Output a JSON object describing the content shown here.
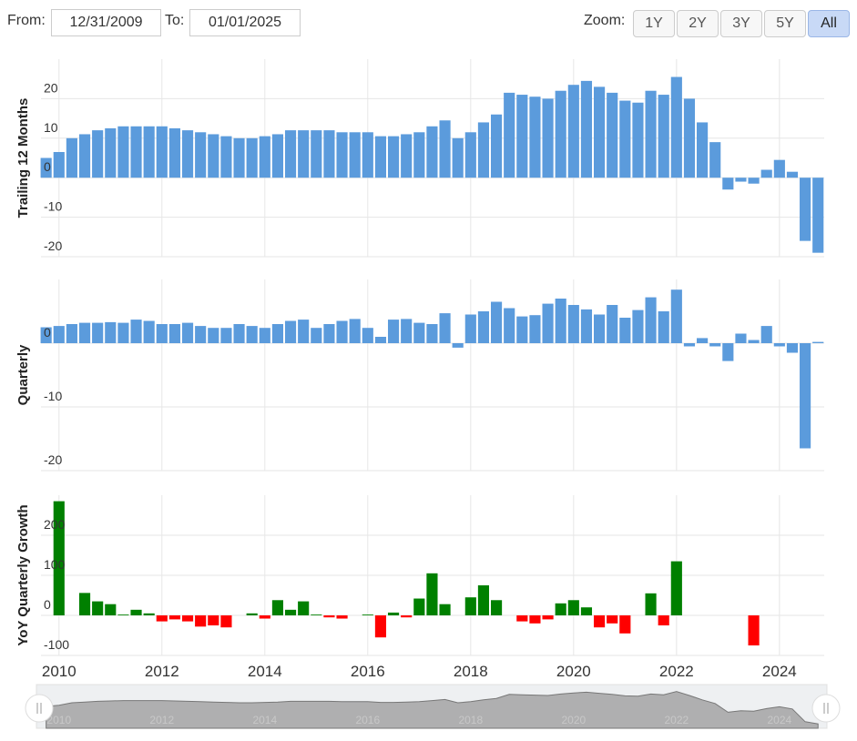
{
  "controls": {
    "from_label": "From:",
    "from_value": "12/31/2009",
    "to_label": "To:",
    "to_value": "01/01/2025",
    "zoom_label": "Zoom:",
    "zoom_buttons": [
      {
        "label": "1Y"
      },
      {
        "label": "2Y"
      },
      {
        "label": "3Y"
      },
      {
        "label": "5Y"
      },
      {
        "label": "All",
        "active": true
      }
    ]
  },
  "chart_data": [
    {
      "type": "bar",
      "ylabel": "Trailing 12 Months",
      "color": "#5b9bdc",
      "x": [
        2009.75,
        2010,
        2010.25,
        2010.5,
        2010.75,
        2011,
        2011.25,
        2011.5,
        2011.75,
        2012,
        2012.25,
        2012.5,
        2012.75,
        2013,
        2013.25,
        2013.5,
        2013.75,
        2014,
        2014.25,
        2014.5,
        2014.75,
        2015,
        2015.25,
        2015.5,
        2015.75,
        2016,
        2016.25,
        2016.5,
        2016.75,
        2017,
        2017.25,
        2017.5,
        2017.75,
        2018,
        2018.25,
        2018.5,
        2018.75,
        2019,
        2019.25,
        2019.5,
        2019.75,
        2020,
        2020.25,
        2020.5,
        2020.75,
        2021,
        2021.25,
        2021.5,
        2021.75,
        2022,
        2022.25,
        2022.5,
        2022.75,
        2023,
        2023.25,
        2023.5,
        2023.75,
        2024,
        2024.25,
        2024.5,
        2024.75
      ],
      "values": [
        5,
        6.5,
        10,
        11,
        12,
        12.5,
        13,
        13,
        13,
        13,
        12.5,
        12,
        11.5,
        11,
        10.5,
        10,
        10,
        10.5,
        11,
        12,
        12,
        12,
        12,
        11.5,
        11.5,
        11.5,
        10.5,
        10.5,
        11,
        11.5,
        13,
        14.5,
        10,
        11.5,
        14,
        16,
        21.5,
        21,
        20.5,
        20,
        22,
        23.5,
        24.5,
        23,
        21.5,
        19.5,
        19,
        22,
        21,
        25.5,
        20,
        14,
        9,
        -3,
        -1,
        -1.5,
        2,
        4.5,
        1.5,
        -16,
        -19
      ],
      "xlim": [
        2009.65,
        2024.87
      ],
      "xticks": [
        2010,
        2012,
        2014,
        2016,
        2018,
        2020,
        2022,
        2024
      ],
      "ylim": [
        -20,
        30
      ],
      "yticks": [
        -20,
        -10,
        0,
        10,
        20
      ],
      "grid": true
    },
    {
      "type": "bar",
      "ylabel": "Quarterly",
      "color": "#5b9bdc",
      "x": [
        2009.75,
        2010,
        2010.25,
        2010.5,
        2010.75,
        2011,
        2011.25,
        2011.5,
        2011.75,
        2012,
        2012.25,
        2012.5,
        2012.75,
        2013,
        2013.25,
        2013.5,
        2013.75,
        2014,
        2014.25,
        2014.5,
        2014.75,
        2015,
        2015.25,
        2015.5,
        2015.75,
        2016,
        2016.25,
        2016.5,
        2016.75,
        2017,
        2017.25,
        2017.5,
        2017.75,
        2018,
        2018.25,
        2018.5,
        2018.75,
        2019,
        2019.25,
        2019.5,
        2019.75,
        2020,
        2020.25,
        2020.5,
        2020.75,
        2021,
        2021.25,
        2021.5,
        2021.75,
        2022,
        2022.25,
        2022.5,
        2022.75,
        2023,
        2023.25,
        2023.5,
        2023.75,
        2024,
        2024.25,
        2024.5,
        2024.75
      ],
      "values": [
        2.5,
        2.7,
        3,
        3.2,
        3.2,
        3.3,
        3.2,
        3.7,
        3.5,
        3,
        3,
        3.2,
        2.7,
        2.4,
        2.4,
        3,
        2.7,
        2.4,
        3,
        3.5,
        3.7,
        2.4,
        3,
        3.5,
        3.8,
        2.4,
        1,
        3.7,
        3.8,
        3.2,
        3,
        4.7,
        -0.7,
        4.5,
        5,
        6.5,
        5.5,
        4.2,
        4.4,
        6.2,
        7,
        6,
        5.3,
        4.5,
        6,
        4,
        5.2,
        7.2,
        5,
        8.4,
        -0.5,
        0.8,
        -0.5,
        -2.8,
        1.5,
        0.5,
        2.7,
        -0.5,
        -1.5,
        -16.5,
        0.2
      ],
      "xlim": [
        2009.65,
        2024.87
      ],
      "xticks": [
        2010,
        2012,
        2014,
        2016,
        2018,
        2020,
        2022,
        2024
      ],
      "ylim": [
        -20,
        10
      ],
      "yticks": [
        -20,
        -10,
        0
      ],
      "grid": true
    },
    {
      "type": "bar",
      "ylabel": "YoY Quarterly Growth",
      "positive_color": "#008000",
      "negative_color": "#ff0000",
      "x": [
        2009.75,
        2010,
        2010.25,
        2010.5,
        2010.75,
        2011,
        2011.25,
        2011.5,
        2011.75,
        2012,
        2012.25,
        2012.5,
        2012.75,
        2013,
        2013.25,
        2013.5,
        2013.75,
        2014,
        2014.25,
        2014.5,
        2014.75,
        2015,
        2015.25,
        2015.5,
        2015.75,
        2016,
        2016.25,
        2016.5,
        2016.75,
        2017,
        2017.25,
        2017.5,
        2017.75,
        2018,
        2018.25,
        2018.5,
        2018.75,
        2019,
        2019.25,
        2019.5,
        2019.75,
        2020,
        2020.25,
        2020.5,
        2020.75,
        2021,
        2021.25,
        2021.5,
        2021.75,
        2022,
        2022.25,
        2022.5,
        2022.75,
        2023,
        2023.25,
        2023.5,
        2023.75,
        2024,
        2024.25,
        2024.5,
        2024.75
      ],
      "values": [
        null,
        285,
        null,
        56,
        35,
        28,
        2,
        14,
        5,
        -15,
        -10,
        -15,
        -28,
        -25,
        -30,
        null,
        5,
        -8,
        38,
        14,
        35,
        2,
        -5,
        -8,
        null,
        2,
        -55,
        7,
        -5,
        42,
        105,
        28,
        null,
        45,
        75,
        38,
        null,
        -15,
        -20,
        -10,
        30,
        38,
        20,
        -30,
        -20,
        -45,
        null,
        55,
        -25,
        135,
        null,
        null,
        null,
        null,
        null,
        -75,
        null,
        null,
        null,
        null,
        null
      ],
      "xlim": [
        2009.65,
        2024.87
      ],
      "xticks": [
        2010,
        2012,
        2014,
        2016,
        2018,
        2020,
        2022,
        2024
      ],
      "ylim": [
        -100,
        300
      ],
      "yticks": [
        -100,
        0,
        100,
        200
      ],
      "grid": true
    }
  ]
}
